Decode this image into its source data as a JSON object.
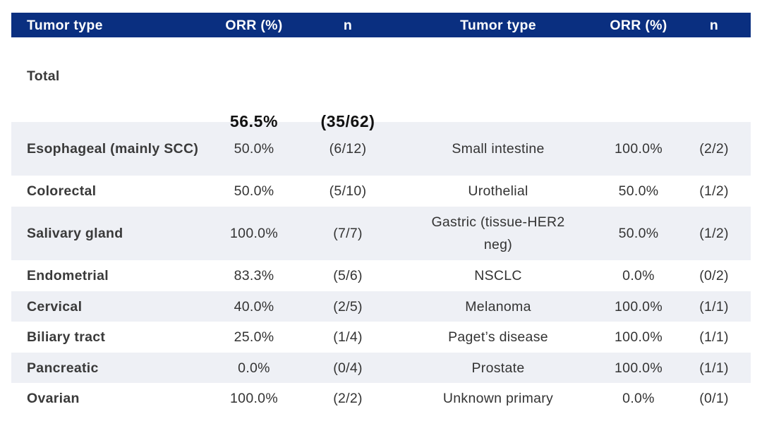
{
  "header": {
    "tumor_type_left": "Tumor type",
    "orr_left": "ORR (%)",
    "n_left": "n",
    "tumor_type_right": "Tumor type",
    "orr_right": "ORR (%)",
    "n_right": "n"
  },
  "total": {
    "label": "Total",
    "orr": "56.5%",
    "n": "(35/62)"
  },
  "rows": [
    {
      "left_type": "Esophageal (mainly SCC)",
      "left_orr": "50.0%",
      "left_n": "(6/12)",
      "right_type": "Small intestine",
      "right_orr": "100.0%",
      "right_n": "(2/2)"
    },
    {
      "left_type": "Colorectal",
      "left_orr": "50.0%",
      "left_n": "(5/10)",
      "right_type": "Urothelial",
      "right_orr": "50.0%",
      "right_n": "(1/2)"
    },
    {
      "left_type": "Salivary gland",
      "left_orr": "100.0%",
      "left_n": "(7/7)",
      "right_type": "Gastric (tissue-HER2 neg)",
      "right_orr": "50.0%",
      "right_n": "(1/2)"
    },
    {
      "left_type": "Endometrial",
      "left_orr": "83.3%",
      "left_n": "(5/6)",
      "right_type": "NSCLC",
      "right_orr": "0.0%",
      "right_n": "(0/2)"
    },
    {
      "left_type": "Cervical",
      "left_orr": "40.0%",
      "left_n": "(2/5)",
      "right_type": "Melanoma",
      "right_orr": "100.0%",
      "right_n": "(1/1)"
    },
    {
      "left_type": "Biliary tract",
      "left_orr": "25.0%",
      "left_n": "(1/4)",
      "right_type": "Paget’s disease",
      "right_orr": "100.0%",
      "right_n": "(1/1)"
    },
    {
      "left_type": "Pancreatic",
      "left_orr": "0.0%",
      "left_n": "(0/4)",
      "right_type": "Prostate",
      "right_orr": "100.0%",
      "right_n": "(1/1)"
    },
    {
      "left_type": "Ovarian",
      "left_orr": "100.0%",
      "left_n": "(2/2)",
      "right_type": "Unknown primary",
      "right_orr": "0.0%",
      "right_n": "(0/1)"
    }
  ],
  "colors": {
    "header_bg": "#0a2f80",
    "header_text": "#ffffff",
    "shaded_row": "#eef0f5",
    "body_text": "#333333"
  }
}
